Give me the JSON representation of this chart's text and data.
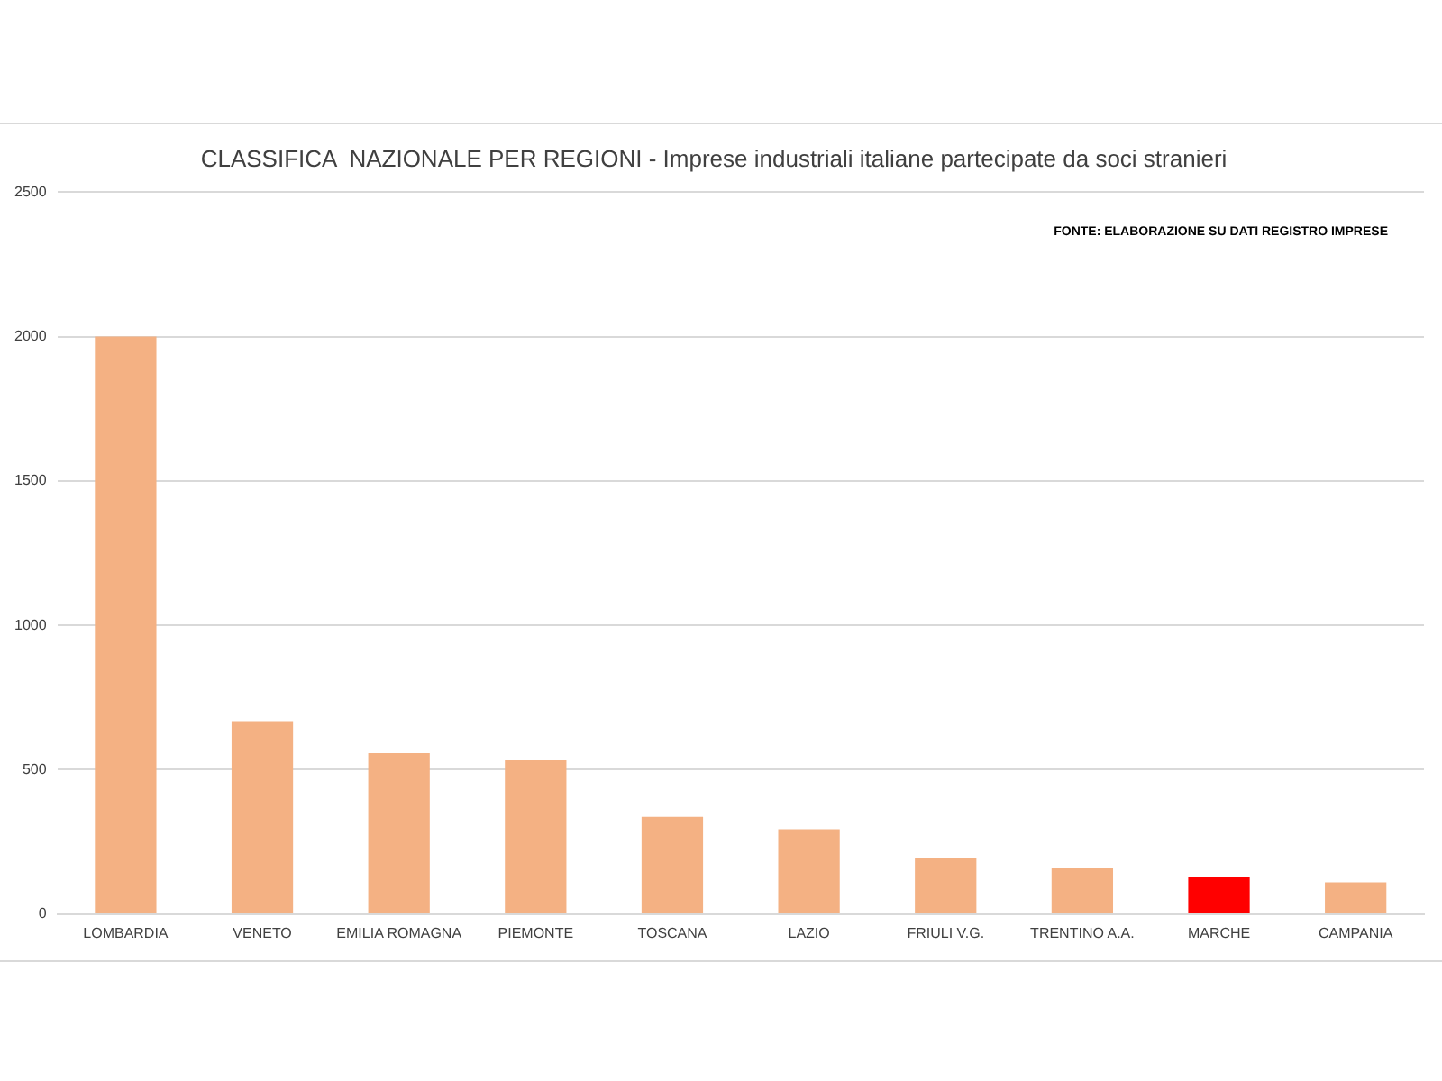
{
  "chart_data": {
    "type": "bar",
    "title": "CLASSIFICA  NAZIONALE PER REGIONI - Imprese industriali italiane partecipate da soci stranieri",
    "annotations": [
      "FONTE: ELABORAZIONE SU DATI REGISTRO IMPRESE"
    ],
    "categories": [
      "LOMBARDIA",
      "VENETO",
      "EMILIA ROMAGNA",
      "PIEMONTE",
      "TOSCANA",
      "LAZIO",
      "FRIULI V.G.",
      "TRENTINO A.A.",
      "MARCHE",
      "CAMPANIA"
    ],
    "values": [
      2000,
      668,
      558,
      533,
      337,
      294,
      196,
      159,
      129,
      110
    ],
    "colors": [
      "#f4b183",
      "#f4b183",
      "#f4b183",
      "#f4b183",
      "#f4b183",
      "#f4b183",
      "#f4b183",
      "#f4b183",
      "#ff0000",
      "#f4b183"
    ],
    "ylim": [
      0,
      2500
    ],
    "yticks": [
      0,
      500,
      1000,
      1500,
      2000,
      2500
    ],
    "grid": "y",
    "legend": false
  }
}
